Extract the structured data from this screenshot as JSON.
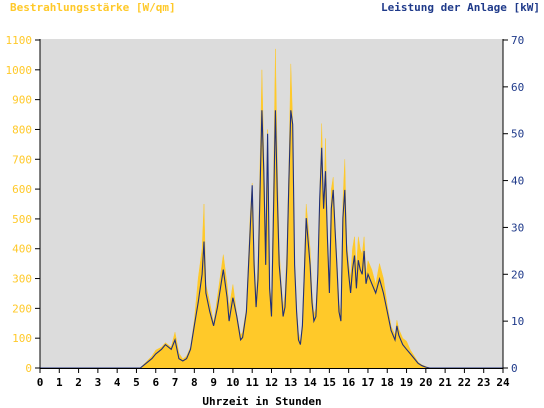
{
  "chart_data": {
    "type": "area",
    "left_axis_title": "Bestrahlungsstärke [W/qm]",
    "right_axis_title": "Leistung der Anlage [kW]",
    "xlabel": "Uhrzeit in Stunden",
    "x_ticks": [
      "0",
      "1",
      "2",
      "3",
      "4",
      "5",
      "6",
      "7",
      "8",
      "9",
      "10",
      "11",
      "12",
      "13",
      "14",
      "15",
      "16",
      "17",
      "18",
      "19",
      "20",
      "21",
      "22",
      "23",
      "24"
    ],
    "y_left_ticks": [
      "0",
      "100",
      "200",
      "300",
      "400",
      "500",
      "600",
      "700",
      "800",
      "900",
      "1000",
      "1100"
    ],
    "y_right_ticks": [
      "0",
      "10",
      "20",
      "30",
      "40",
      "50",
      "60",
      "70"
    ],
    "xlim": [
      0,
      24
    ],
    "ylim_left": [
      0,
      1100
    ],
    "ylim_right": [
      0,
      70
    ],
    "grid": false,
    "colors": {
      "plot_background": "#dcdcdc",
      "irradiance_fill": "#ffc929",
      "power_line": "#1f2f7a",
      "left_axis": "#ffc929",
      "right_axis": "#1f3a8a",
      "axis_line": "#000000"
    },
    "series": [
      {
        "axis": "left",
        "x": [
          0,
          5.2,
          5.5,
          5.8,
          6.0,
          6.3,
          6.5,
          6.8,
          7.0,
          7.2,
          7.4,
          7.6,
          7.8,
          8.0,
          8.2,
          8.4,
          8.5,
          8.6,
          8.8,
          9.0,
          9.2,
          9.5,
          9.7,
          9.8,
          10.0,
          10.2,
          10.4,
          10.5,
          10.7,
          10.9,
          11.0,
          11.1,
          11.2,
          11.3,
          11.5,
          11.6,
          11.7,
          11.8,
          11.9,
          12.0,
          12.1,
          12.2,
          12.3,
          12.4,
          12.5,
          12.6,
          12.7,
          12.8,
          12.9,
          13.0,
          13.1,
          13.2,
          13.3,
          13.4,
          13.5,
          13.6,
          13.7,
          13.8,
          14.0,
          14.1,
          14.2,
          14.3,
          14.4,
          14.5,
          14.6,
          14.7,
          14.8,
          14.9,
          15.0,
          15.1,
          15.2,
          15.3,
          15.4,
          15.5,
          15.6,
          15.7,
          15.8,
          15.9,
          16.0,
          16.1,
          16.2,
          16.3,
          16.4,
          16.5,
          16.6,
          16.7,
          16.8,
          16.9,
          17.0,
          17.2,
          17.4,
          17.6,
          17.8,
          18.0,
          18.2,
          18.4,
          18.5,
          18.6,
          18.8,
          19.0,
          19.2,
          19.4,
          19.6,
          19.8,
          20.0,
          20.2,
          24
        ],
        "values": [
          0,
          0,
          20,
          40,
          60,
          70,
          85,
          70,
          120,
          50,
          30,
          40,
          70,
          160,
          300,
          400,
          550,
          280,
          220,
          150,
          240,
          380,
          280,
          200,
          280,
          180,
          110,
          120,
          200,
          520,
          620,
          380,
          230,
          350,
          1000,
          720,
          400,
          800,
          280,
          220,
          600,
          1070,
          700,
          400,
          290,
          200,
          250,
          400,
          680,
          1020,
          820,
          350,
          200,
          120,
          90,
          150,
          350,
          550,
          400,
          250,
          180,
          200,
          320,
          580,
          820,
          520,
          770,
          450,
          280,
          600,
          640,
          470,
          350,
          220,
          180,
          560,
          700,
          420,
          350,
          300,
          400,
          440,
          330,
          440,
          400,
          380,
          440,
          310,
          360,
          330,
          280,
          350,
          300,
          210,
          140,
          110,
          160,
          130,
          100,
          90,
          60,
          40,
          20,
          10,
          5,
          0,
          0
        ]
      },
      {
        "axis": "right",
        "x": [
          0,
          5.2,
          5.5,
          5.8,
          6.0,
          6.3,
          6.5,
          6.8,
          7.0,
          7.2,
          7.4,
          7.6,
          7.8,
          8.0,
          8.2,
          8.4,
          8.5,
          8.6,
          8.8,
          9.0,
          9.2,
          9.5,
          9.7,
          9.8,
          10.0,
          10.2,
          10.4,
          10.5,
          10.7,
          10.9,
          11.0,
          11.1,
          11.2,
          11.3,
          11.5,
          11.6,
          11.7,
          11.8,
          11.9,
          12.0,
          12.1,
          12.2,
          12.3,
          12.4,
          12.5,
          12.6,
          12.7,
          12.8,
          12.9,
          13.0,
          13.1,
          13.2,
          13.3,
          13.4,
          13.5,
          13.6,
          13.7,
          13.8,
          14.0,
          14.1,
          14.2,
          14.3,
          14.4,
          14.5,
          14.6,
          14.7,
          14.8,
          14.9,
          15.0,
          15.1,
          15.2,
          15.3,
          15.4,
          15.5,
          15.6,
          15.7,
          15.8,
          15.9,
          16.0,
          16.1,
          16.2,
          16.3,
          16.4,
          16.5,
          16.6,
          16.7,
          16.8,
          16.9,
          17.0,
          17.2,
          17.4,
          17.6,
          17.8,
          18.0,
          18.2,
          18.4,
          18.5,
          18.6,
          18.8,
          19.0,
          19.2,
          19.4,
          19.6,
          19.8,
          20.0,
          20.2,
          24
        ],
        "values": [
          0,
          0,
          1,
          2,
          3,
          4,
          5,
          4,
          6,
          2,
          1.5,
          2,
          4,
          9,
          14,
          20,
          27,
          16,
          12,
          9,
          13,
          21,
          15,
          10,
          15,
          11,
          6,
          6.5,
          12,
          30,
          39,
          22,
          13,
          19,
          55,
          42,
          22,
          50,
          17,
          11,
          32,
          55,
          37,
          22,
          17,
          11,
          13,
          22,
          40,
          55,
          52,
          22,
          12,
          6,
          5,
          9,
          20,
          32,
          22,
          14,
          10,
          11,
          20,
          36,
          47,
          34,
          42,
          28,
          16,
          34,
          38,
          29,
          21,
          12,
          10,
          32,
          38,
          25,
          20,
          16,
          21,
          24,
          17,
          23,
          21,
          20,
          25,
          18,
          20,
          18,
          16,
          19,
          16,
          12,
          8,
          6,
          9,
          7,
          5,
          4,
          3,
          2,
          1,
          0.5,
          0.2,
          0,
          0
        ]
      }
    ]
  }
}
